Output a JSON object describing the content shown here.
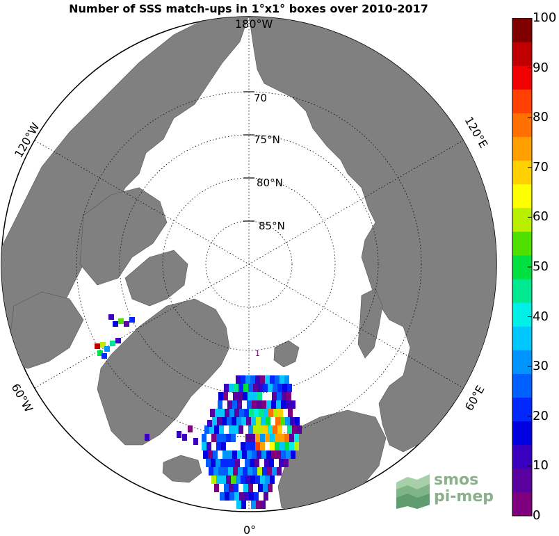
{
  "title": "Number of SSS match-ups in 1°x1° boxes over 2010-2017",
  "map": {
    "projection": "north-polar-stereographic",
    "land_color": "#808080",
    "ocean_color": "#ffffff",
    "latitude_labels": [
      "70",
      "75°N",
      "80°N",
      "85°N"
    ],
    "longitude_labels": {
      "top": "180°W",
      "upper_left": "120°W",
      "upper_right": "120°E",
      "lower_left": "60°W",
      "lower_right": "60°E",
      "bottom": "0°"
    },
    "patch_annotation": "1"
  },
  "colorbar": {
    "min": 0,
    "max": 100,
    "tick_labels": [
      "100",
      "90",
      "80",
      "70",
      "60",
      "50",
      "40",
      "30",
      "20",
      "10",
      "0"
    ],
    "colors": [
      "#7f007f",
      "#5a009f",
      "#3a00c0",
      "#0000e0",
      "#0028ff",
      "#0060ff",
      "#0094ff",
      "#00c8ff",
      "#00f0e8",
      "#00e890",
      "#00e040",
      "#50e000",
      "#b8f000",
      "#ffff00",
      "#ffd000",
      "#ffa000",
      "#ff7000",
      "#ff4000",
      "#f00000",
      "#c00000",
      "#800000"
    ]
  },
  "logo": {
    "line1": "smos",
    "line2": "pi-mep"
  }
}
